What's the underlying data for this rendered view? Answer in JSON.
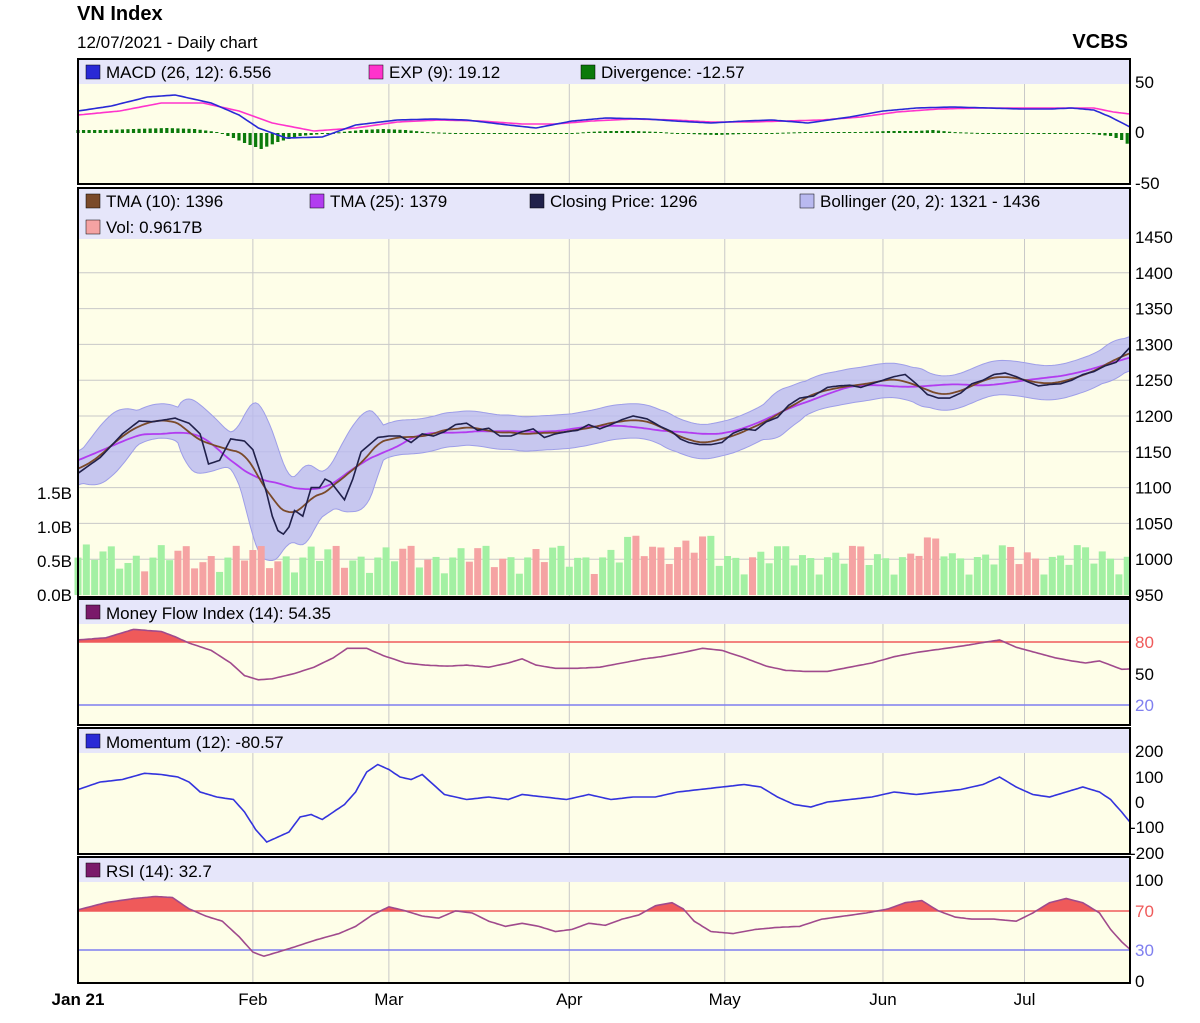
{
  "header": {
    "title": "VN Index",
    "subtitle": "12/07/2021 - Daily chart",
    "brand": "VCBS"
  },
  "colors": {
    "panel_bg": "#fefee8",
    "legend_bg": "#e6e6fa",
    "grid": "#c8c8c8",
    "macd": "#2929d6",
    "exp": "#ff33cc",
    "divergence": "#0b7a0b",
    "tma10": "#7a4a2a",
    "tma25": "#b23cf0",
    "closing": "#20204a",
    "bollinger_fill": "#b9b9f0",
    "bollinger_edge": "#9e9ee8",
    "vol_up": "#a3f0a3",
    "vol_down": "#f5a3a3",
    "mfi": "#a04a8c",
    "overbought": "#ef5a5a",
    "oversold_line": "#7f7fef",
    "momentum": "#3333dd",
    "rsi": "#a04a8c"
  },
  "x_axis": {
    "labels": [
      "Jan 21",
      "Feb",
      "Mar",
      "Apr",
      "May",
      "Jun",
      "Jul"
    ]
  },
  "panels": {
    "macd": {
      "legend": [
        "MACD (26, 12): 6.556",
        "EXP (9): 19.12",
        "Divergence: -12.57"
      ],
      "ticks": [
        "50",
        "0",
        "-50"
      ]
    },
    "price": {
      "legend_row1": [
        "TMA (10): 1396",
        "TMA (25): 1379",
        "Closing Price: 1296",
        "Bollinger (20, 2): 1321 - 1436"
      ],
      "legend_row2": [
        "Vol: 0.9617B"
      ],
      "ticks_right": [
        "1450",
        "1400",
        "1350",
        "1300",
        "1250",
        "1200",
        "1150",
        "1100",
        "1050",
        "1000",
        "950"
      ],
      "ticks_left": [
        "1.5B",
        "1.0B",
        "0.5B",
        "0.0B"
      ]
    },
    "mfi": {
      "legend": "Money Flow Index (14): 54.35",
      "ticks": [
        "80",
        "50",
        "20"
      ]
    },
    "momentum": {
      "legend": "Momentum (12): -80.57",
      "ticks": [
        "200",
        "100",
        "0",
        "-100",
        "-200"
      ]
    },
    "rsi": {
      "legend": "RSI (14): 32.7",
      "ticks": [
        "100",
        "70",
        "30",
        "0"
      ]
    }
  },
  "chart_data": [
    {
      "type": "line",
      "title": "MACD",
      "series": [
        {
          "name": "MACD (26, 12)",
          "points": [
            [
              0,
              22
            ],
            [
              12,
              27
            ],
            [
              25,
              36
            ],
            [
              35,
              38
            ],
            [
              48,
              30
            ],
            [
              58,
              18
            ],
            [
              65,
              5
            ],
            [
              75,
              -5
            ],
            [
              88,
              -4
            ],
            [
              100,
              8
            ],
            [
              115,
              13
            ],
            [
              128,
              14
            ],
            [
              140,
              13
            ],
            [
              155,
              8
            ],
            [
              165,
              5
            ],
            [
              178,
              12
            ],
            [
              190,
              15
            ],
            [
              205,
              14
            ],
            [
              215,
              12
            ],
            [
              228,
              10
            ],
            [
              240,
              12
            ],
            [
              250,
              13
            ],
            [
              263,
              10
            ],
            [
              278,
              16
            ],
            [
              290,
              22
            ],
            [
              302,
              25
            ],
            [
              315,
              26
            ],
            [
              328,
              25
            ],
            [
              340,
              24
            ],
            [
              350,
              24
            ],
            [
              358,
              25
            ],
            [
              366,
              23
            ],
            [
              372,
              16
            ],
            [
              379,
              6
            ]
          ]
        },
        {
          "name": "EXP (9)",
          "points": [
            [
              0,
              18
            ],
            [
              15,
              22
            ],
            [
              30,
              30
            ],
            [
              45,
              30
            ],
            [
              58,
              22
            ],
            [
              70,
              10
            ],
            [
              85,
              2
            ],
            [
              100,
              5
            ],
            [
              115,
              11
            ],
            [
              130,
              13
            ],
            [
              145,
              12
            ],
            [
              160,
              9
            ],
            [
              172,
              9
            ],
            [
              185,
              12
            ],
            [
              200,
              14
            ],
            [
              215,
              13
            ],
            [
              228,
              11
            ],
            [
              242,
              11
            ],
            [
              255,
              12
            ],
            [
              268,
              13
            ],
            [
              282,
              16
            ],
            [
              295,
              21
            ],
            [
              310,
              24
            ],
            [
              325,
              25
            ],
            [
              340,
              25
            ],
            [
              355,
              25
            ],
            [
              366,
              25
            ],
            [
              373,
              21
            ],
            [
              379,
              19
            ]
          ]
        },
        {
          "name": "Divergence",
          "points": [
            [
              0,
              3
            ],
            [
              10,
              3
            ],
            [
              20,
              4
            ],
            [
              32,
              5
            ],
            [
              42,
              4
            ],
            [
              50,
              1
            ],
            [
              56,
              -5
            ],
            [
              60,
              -10
            ],
            [
              66,
              -16
            ],
            [
              72,
              -9
            ],
            [
              80,
              -3
            ],
            [
              88,
              -1
            ],
            [
              95,
              1
            ],
            [
              102,
              3
            ],
            [
              110,
              4
            ],
            [
              118,
              3
            ],
            [
              125,
              1
            ],
            [
              135,
              0
            ],
            [
              145,
              0
            ],
            [
              155,
              -1
            ],
            [
              165,
              -1
            ],
            [
              175,
              -1
            ],
            [
              183,
              1
            ],
            [
              192,
              2
            ],
            [
              200,
              2
            ],
            [
              210,
              1
            ],
            [
              220,
              -1
            ],
            [
              230,
              -2
            ],
            [
              240,
              -1
            ],
            [
              250,
              0
            ],
            [
              262,
              1
            ],
            [
              272,
              1
            ],
            [
              282,
              1
            ],
            [
              292,
              2
            ],
            [
              302,
              2
            ],
            [
              308,
              3
            ],
            [
              315,
              1
            ],
            [
              325,
              0
            ],
            [
              335,
              0
            ],
            [
              345,
              -1
            ],
            [
              355,
              -1
            ],
            [
              365,
              -1
            ],
            [
              372,
              -3
            ],
            [
              376,
              -7
            ],
            [
              379,
              -12.57
            ]
          ]
        }
      ],
      "ylim": [
        -50,
        60
      ]
    },
    {
      "type": "line",
      "title": "Price",
      "series": [
        {
          "name": "Closing Price",
          "points": [
            [
              0,
              1120
            ],
            [
              8,
              1142
            ],
            [
              16,
              1175
            ],
            [
              22,
              1193
            ],
            [
              27,
              1192
            ],
            [
              35,
              1197
            ],
            [
              40,
              1190
            ],
            [
              44,
              1175
            ],
            [
              47,
              1133
            ],
            [
              51,
              1138
            ],
            [
              55,
              1168
            ],
            [
              60,
              1165
            ],
            [
              63,
              1153
            ],
            [
              66,
              1118
            ],
            [
              68,
              1092
            ],
            [
              70,
              1060
            ],
            [
              72,
              1040
            ],
            [
              74,
              1035
            ],
            [
              76,
              1045
            ],
            [
              78,
              1068
            ],
            [
              81,
              1060
            ],
            [
              84,
              1100
            ],
            [
              87,
              1100
            ],
            [
              89,
              1112
            ],
            [
              91,
              1108
            ],
            [
              93,
              1098
            ],
            [
              96,
              1083
            ],
            [
              99,
              1112
            ],
            [
              102,
              1150
            ],
            [
              105,
              1160
            ],
            [
              108,
              1170
            ],
            [
              112,
              1172
            ],
            [
              116,
              1172
            ],
            [
              120,
              1163
            ],
            [
              124,
              1175
            ],
            [
              128,
              1172
            ],
            [
              132,
              1178
            ],
            [
              136,
              1188
            ],
            [
              140,
              1190
            ],
            [
              144,
              1180
            ],
            [
              148,
              1183
            ],
            [
              152,
              1172
            ],
            [
              156,
              1172
            ],
            [
              160,
              1178
            ],
            [
              164,
              1182
            ],
            [
              168,
              1170
            ],
            [
              172,
              1175
            ],
            [
              176,
              1178
            ],
            [
              180,
              1180
            ],
            [
              184,
              1188
            ],
            [
              188,
              1182
            ],
            [
              192,
              1188
            ],
            [
              196,
              1195
            ],
            [
              200,
              1200
            ],
            [
              205,
              1196
            ],
            [
              210,
              1185
            ],
            [
              214,
              1178
            ],
            [
              217,
              1168
            ],
            [
              220,
              1163
            ],
            [
              224,
              1160
            ],
            [
              228,
              1160
            ],
            [
              232,
              1163
            ],
            [
              236,
              1176
            ],
            [
              240,
              1182
            ],
            [
              244,
              1180
            ],
            [
              248,
              1192
            ],
            [
              252,
              1198
            ],
            [
              256,
              1215
            ],
            [
              260,
              1225
            ],
            [
              265,
              1228
            ],
            [
              270,
              1240
            ],
            [
              274,
              1242
            ],
            [
              278,
              1243
            ],
            [
              282,
              1240
            ],
            [
              286,
              1245
            ],
            [
              290,
              1250
            ],
            [
              294,
              1255
            ],
            [
              298,
              1258
            ],
            [
              302,
              1245
            ],
            [
              306,
              1230
            ],
            [
              310,
              1225
            ],
            [
              314,
              1225
            ],
            [
              318,
              1232
            ],
            [
              322,
              1245
            ],
            [
              326,
              1250
            ],
            [
              330,
              1258
            ],
            [
              334,
              1260
            ],
            [
              338,
              1255
            ],
            [
              342,
              1248
            ],
            [
              346,
              1242
            ],
            [
              350,
              1244
            ],
            [
              354,
              1245
            ],
            [
              358,
              1250
            ],
            [
              362,
              1258
            ],
            [
              366,
              1262
            ],
            [
              370,
              1270
            ],
            [
              374,
              1275
            ],
            [
              379,
              1296
            ]
          ]
        }
      ],
      "ylim": [
        950,
        1450
      ]
    }
  ]
}
